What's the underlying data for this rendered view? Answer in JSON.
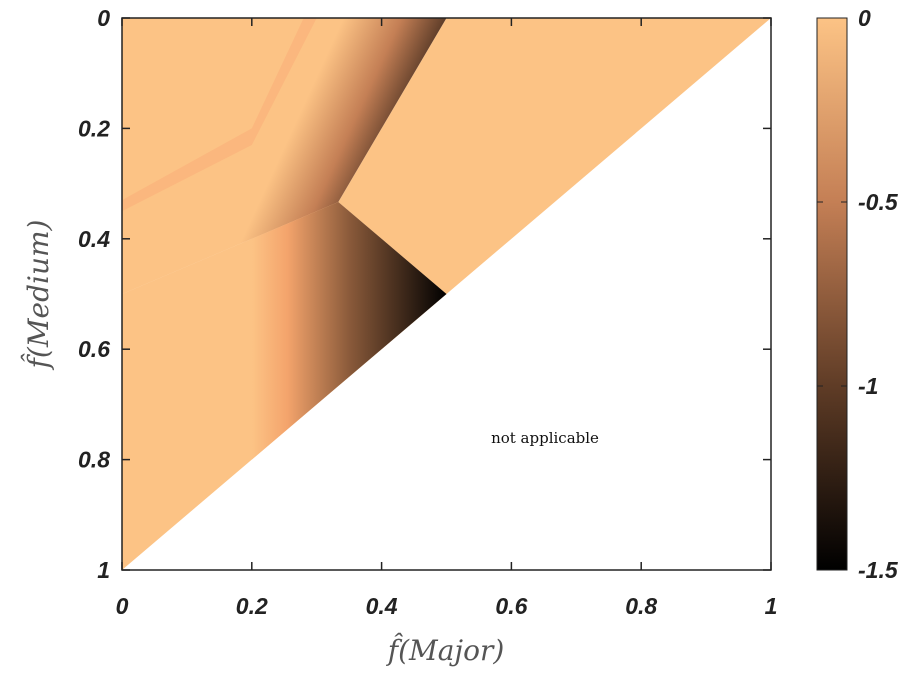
{
  "chart_data": {
    "type": "heatmap",
    "xlabel": "f̂(Major)",
    "ylabel": "f̂(Medium)",
    "xlim": [
      0,
      1
    ],
    "ylim": [
      0,
      1
    ],
    "y_direction": "reversed",
    "x_ticks": [
      0,
      0.2,
      0.4,
      0.6,
      0.8,
      1
    ],
    "x_tick_labels": [
      "0",
      "0.2",
      "0.4",
      "0.6",
      "0.8",
      "1"
    ],
    "y_ticks": [
      0,
      0.2,
      0.4,
      0.6,
      0.8,
      1
    ],
    "y_tick_labels": [
      "0",
      "0.2",
      "0.4",
      "0.6",
      "0.8",
      "1"
    ],
    "colorbar": {
      "colormap": "copper",
      "range": [
        -1.5,
        0
      ],
      "ticks": [
        0,
        -0.5,
        -1,
        -1.5
      ],
      "tick_labels": [
        "0",
        "-0.5",
        "-1",
        "-1.5"
      ]
    },
    "colormap_stops": [
      {
        "value": -1.5,
        "color": "#000000"
      },
      {
        "value": -1.0,
        "color": "#5f3c26"
      },
      {
        "value": -0.5,
        "color": "#c47f55"
      },
      {
        "value": 0.0,
        "color": "#fcc385"
      }
    ],
    "regions": [
      {
        "name": "upper-left",
        "value": 0,
        "boundary": [
          [
            0,
            0
          ],
          [
            0.3,
            0
          ],
          [
            0.3333,
            0.3333
          ],
          [
            0,
            0.5
          ]
        ]
      },
      {
        "name": "upper-right",
        "value": 0,
        "boundary": [
          [
            0.5,
            0
          ],
          [
            1,
            0
          ],
          [
            0.5,
            0.5
          ],
          [
            0.3333,
            0.3333
          ]
        ]
      },
      {
        "name": "lower-left",
        "value": 0,
        "boundary": [
          [
            0,
            0.5
          ],
          [
            0.3333,
            0.3333
          ],
          [
            0.5,
            0.5
          ],
          [
            0,
            1
          ]
        ]
      }
    ],
    "gradient_bands": [
      {
        "name": "upper-diagonal-band",
        "from": [
          [
            0,
            0.35
          ],
          [
            0.2,
            0.23
          ],
          [
            0.3,
            0
          ],
          [
            0.3333,
            0.3333
          ]
        ],
        "to": [
          [
            0.5,
            0
          ],
          [
            0.3333,
            0.3333
          ]
        ],
        "value_range": [
          0,
          -1.5
        ]
      },
      {
        "name": "lower-vertical-band",
        "x_range": [
          0.2,
          0.5
        ],
        "value_range": [
          0,
          -1.5
        ]
      }
    ],
    "not_applicable_region": {
      "condition": "f(Major) + f(Medium) > 1",
      "label": "not applicable"
    },
    "annotations": [
      "not applicable"
    ]
  }
}
